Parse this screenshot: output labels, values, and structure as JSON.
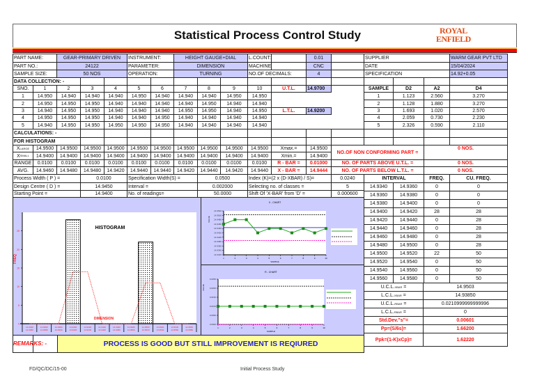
{
  "title": "Statistical Process Control Study",
  "logo": {
    "line1": "ROYAL",
    "line2": "ENFIELD"
  },
  "header": {
    "part_name_label": "PART NAME:",
    "part_name": "GEAR-PRIMARY DRIVEN",
    "instrument_label": "INSTRUMENT:",
    "instrument": "HEIGHT GAUGE+DIAL",
    "lcount_label": "L.COUNT:",
    "lcount": "0.01",
    "part_no_label": "PART NO.:",
    "part_no": "24122",
    "parameter_label": "PARAMETER:",
    "parameter": "DIMENSION",
    "machine_label": "MACHINE:",
    "machine": "CNC",
    "sample_size_label": "SAMPLE SIZE:",
    "sample_size": "50 NOS",
    "operation_label": "OPERATION:",
    "operation": "TURNING",
    "decimals_label": "NO.OF DECIMALS:",
    "decimals": "4",
    "supplier_label": "SUPPLIER",
    "supplier": "WARM GEAR PVT LTD",
    "date_label": "DATE",
    "date": "15/04/2024",
    "spec_label": "SPECIFICATION",
    "spec": "14.92+0.05"
  },
  "data_collection": {
    "label": "DATA COLLECTION: -",
    "sno_label": "SNO.",
    "columns": [
      "1",
      "2",
      "3",
      "4",
      "5",
      "6",
      "7",
      "8",
      "9",
      "10"
    ],
    "rows": [
      [
        "1",
        "14.950",
        "14.940",
        "14.940",
        "14.940",
        "14.950",
        "14.940",
        "14.940",
        "14.940",
        "14.950",
        "14.950"
      ],
      [
        "2",
        "14.950",
        "14.950",
        "14.950",
        "14.940",
        "14.940",
        "14.940",
        "14.940",
        "14.950",
        "14.940",
        "14.940"
      ],
      [
        "3",
        "14.940",
        "14.950",
        "14.950",
        "14.940",
        "14.940",
        "14.940",
        "14.950",
        "14.950",
        "14.940",
        "14.950"
      ],
      [
        "4",
        "14.950",
        "14.950",
        "14.950",
        "14.940",
        "14.940",
        "14.950",
        "14.940",
        "14.940",
        "14.940",
        "14.940"
      ],
      [
        "5",
        "14.940",
        "14.950",
        "14.950",
        "14.950",
        "14.950",
        "14.950",
        "14.940",
        "14.940",
        "14.940",
        "14.940"
      ]
    ],
    "utl_label": "U.T.L.",
    "utl": "14.9700",
    "ltl_label": "L.T.L.",
    "ltl": "14.9200"
  },
  "constants": {
    "headers": [
      "SAMPLE",
      "D2",
      "A2",
      "D4"
    ],
    "rows": [
      [
        "1",
        "1.123",
        "2.560",
        "3.270"
      ],
      [
        "2",
        "1.128",
        "1.880",
        "3.270"
      ],
      [
        "3",
        "1.693",
        "1.020",
        "2.570"
      ],
      [
        "4",
        "2.059",
        "0.730",
        "2.230"
      ],
      [
        "5",
        "2.326",
        "0.590",
        "2.110"
      ]
    ]
  },
  "calculations": {
    "label": "CALCULATIONS: -",
    "for_histogram": "FOR HISTOGRAM",
    "xlarge_label": "X",
    "xlarge_sub": "LARGE",
    "xsmall_label": "X",
    "xsmall_sub": "SMALL",
    "range_label": "RANGE",
    "avg_label": "AVG.",
    "xlarge": [
      "14.9500",
      "14.9500",
      "14.9500",
      "14.9500",
      "14.9500",
      "14.9500",
      "14.9500",
      "14.9500",
      "14.9500",
      "14.9500"
    ],
    "xsmall": [
      "14.9400",
      "14.9400",
      "14.9400",
      "14.9400",
      "14.9400",
      "14.9400",
      "14.9400",
      "14.9400",
      "14.9400",
      "14.9400"
    ],
    "range": [
      "0.0100",
      "0.0100",
      "0.0100",
      "0.0100",
      "0.0100",
      "0.0100",
      "0.0100",
      "0.0100",
      "0.0100",
      "0.0100"
    ],
    "avg": [
      "14.9460",
      "14.9480",
      "14.9480",
      "14.9420",
      "14.9440",
      "14.9440",
      "14.9420",
      "14.9440",
      "14.9420",
      "14.9440"
    ],
    "xmax_label": "Xmax.=",
    "xmax": "14.9500",
    "xmin_label": "Xmin.=",
    "xmin": "14.9400",
    "rbar_label": "R - BAR =",
    "rbar": "0.01000",
    "xbar_label": "X - BAR =",
    "xbar": "14.9444",
    "nonconf_label": "NO.OF NON CONFORMING PART =",
    "nonconf": "0 NOS.",
    "above_label": "NO. OF PARTS ABOVE U.T.L. =",
    "above": "0 NOS.",
    "below_label": "NO. OF PARTS BELOW L.T.L. =",
    "below": "0 NOS.",
    "process_width_label": "Process Width ( P ) =",
    "process_width": "0.0100",
    "spec_width_label": "Specification Width(S) =",
    "spec_width": "0.0500",
    "index_label": "Index (K)=(2 x (D-XBAR) / S)=",
    "index": "0.0240",
    "design_centre_label": "Design Centre ( D ) =",
    "design_centre": "14.9450",
    "interval_label": "Interval =",
    "interval": "0.002000",
    "classes_label": "Selecting no. of classes =",
    "classes": "5",
    "starting_label": "Starting Point =",
    "starting": "14.9400",
    "readings_label": "No. of readings=",
    "readings": "50.0000",
    "shift_label": "Shift Of 'X-BAR' from 'D' =",
    "shift": "0.000600"
  },
  "frequency": {
    "headers": {
      "interval": "INTERVAL",
      "freq": "FREQ.",
      "cu_freq": "CU. FREQ."
    },
    "rows": [
      [
        "14.9340",
        "14.9360",
        "0",
        "0"
      ],
      [
        "14.9360",
        "14.9380",
        "0",
        "0"
      ],
      [
        "14.9380",
        "14.9400",
        "0",
        "0"
      ],
      [
        "14.9400",
        "14.9420",
        "28",
        "28"
      ],
      [
        "14.9420",
        "14.9440",
        "0",
        "28"
      ],
      [
        "14.9440",
        "14.9460",
        "0",
        "28"
      ],
      [
        "14.9460",
        "14.9480",
        "0",
        "28"
      ],
      [
        "14.9480",
        "14.9500",
        "0",
        "28"
      ],
      [
        "14.9500",
        "14.9520",
        "22",
        "50"
      ],
      [
        "14.9520",
        "14.9540",
        "0",
        "50"
      ],
      [
        "14.9540",
        "14.9560",
        "0",
        "50"
      ],
      [
        "14.9560",
        "14.9580",
        "0",
        "50"
      ]
    ]
  },
  "limits": {
    "ucl_x_label": "U.C.L.",
    "ucl_x_sub": "XBAR",
    "ucl_x": "14.9503",
    "lcl_x_label": "L.C.L.",
    "lcl_x_sub": "XBAR",
    "lcl_x": "14.93850",
    "ucl_r_label": "U.C.L.",
    "ucl_r_sub": "RBAR",
    "ucl_r": "0.0210999999999996",
    "lcl_r_label": "L.C.L.",
    "lcl_r_sub": "RBAR",
    "lcl_r": "0",
    "std_label": "Std.Dev.\"s\"=",
    "std": "0.00601",
    "pp_label": "Pp=(S/6s)=",
    "pp": "1.66200",
    "ppk_label": "Ppk=(1-K)xCp)=",
    "ppk": "1.62220"
  },
  "remarks": {
    "label": "REMARKS: -",
    "text": "PROCESS IS GOOD BUT STILL IMPROVEMENT IS REQIURED"
  },
  "footer": {
    "doc_no": "FD/QC/DC/15-00",
    "doc_title": "Initial Process Study"
  },
  "chart_data": [
    {
      "type": "bar",
      "title": "HISTOGRAM",
      "xlabel": "DIMENSION",
      "ylabel": "FREQ",
      "categories": [
        "14.9340-14.9360",
        "14.9360-14.9380",
        "14.9380-14.9400",
        "14.9400-14.9420",
        "14.9420-14.9440",
        "14.9440-14.9460",
        "14.9460-14.9480",
        "14.9480-14.9500",
        "14.9500-14.9520",
        "14.9520-14.9540",
        "14.9540-14.9560",
        "14.9560-14.9580"
      ],
      "values": [
        0,
        0,
        0,
        28,
        0,
        0,
        0,
        0,
        22,
        0,
        0,
        0
      ],
      "curve": [
        0,
        0,
        0,
        14,
        14,
        0,
        0,
        0,
        11,
        11,
        0,
        0
      ],
      "ylim": [
        0,
        30
      ],
      "yticks": [
        "0",
        "5",
        "10",
        "15",
        "20",
        "25"
      ],
      "colors": {
        "bar": "#000000",
        "curve": "#ff0000"
      }
    },
    {
      "type": "line",
      "title": "X - CHART",
      "xlabel": "SAMPLE",
      "ylabel": "VALUE",
      "x": [
        1,
        2,
        3,
        4,
        5,
        6,
        7,
        8,
        9,
        10
      ],
      "values": [
        14.946,
        14.948,
        14.948,
        14.942,
        14.944,
        14.944,
        14.942,
        14.944,
        14.942,
        14.944
      ],
      "center": 14.9444,
      "ucl": 14.9503,
      "lcl": 14.9385,
      "ylim": [
        14.932,
        14.952
      ],
      "yticks": [
        "14.9320",
        "14.9340",
        "14.9360",
        "14.9380",
        "14.9400",
        "14.9420",
        "14.9440",
        "14.9460",
        "14.9480",
        "14.9500",
        "14.9520"
      ],
      "colors": {
        "data": "#22aa22",
        "center": "#2222dd",
        "ucl": "#333333",
        "lcl": "#ff22cc"
      }
    },
    {
      "type": "line",
      "title": "R - CHART",
      "xlabel": "SAMPLE",
      "ylabel": "VALUE",
      "x": [
        1,
        2,
        3,
        4,
        5,
        6,
        7,
        8,
        9,
        10
      ],
      "values": [
        0.01,
        0.01,
        0.01,
        0.01,
        0.01,
        0.01,
        0.01,
        0.01,
        0.01,
        0.01
      ],
      "center": 0.01,
      "ucl": 0.0211,
      "lcl": 0,
      "ylim": [
        0,
        0.025
      ],
      "yticks": [
        "0.0000",
        "0.0050",
        "0.0100",
        "0.0150",
        "0.0200",
        "0.0250"
      ],
      "colors": {
        "data": "#22aa22",
        "center": "#2222dd",
        "ucl": "#333333",
        "lcl": "#ff22cc"
      }
    }
  ]
}
